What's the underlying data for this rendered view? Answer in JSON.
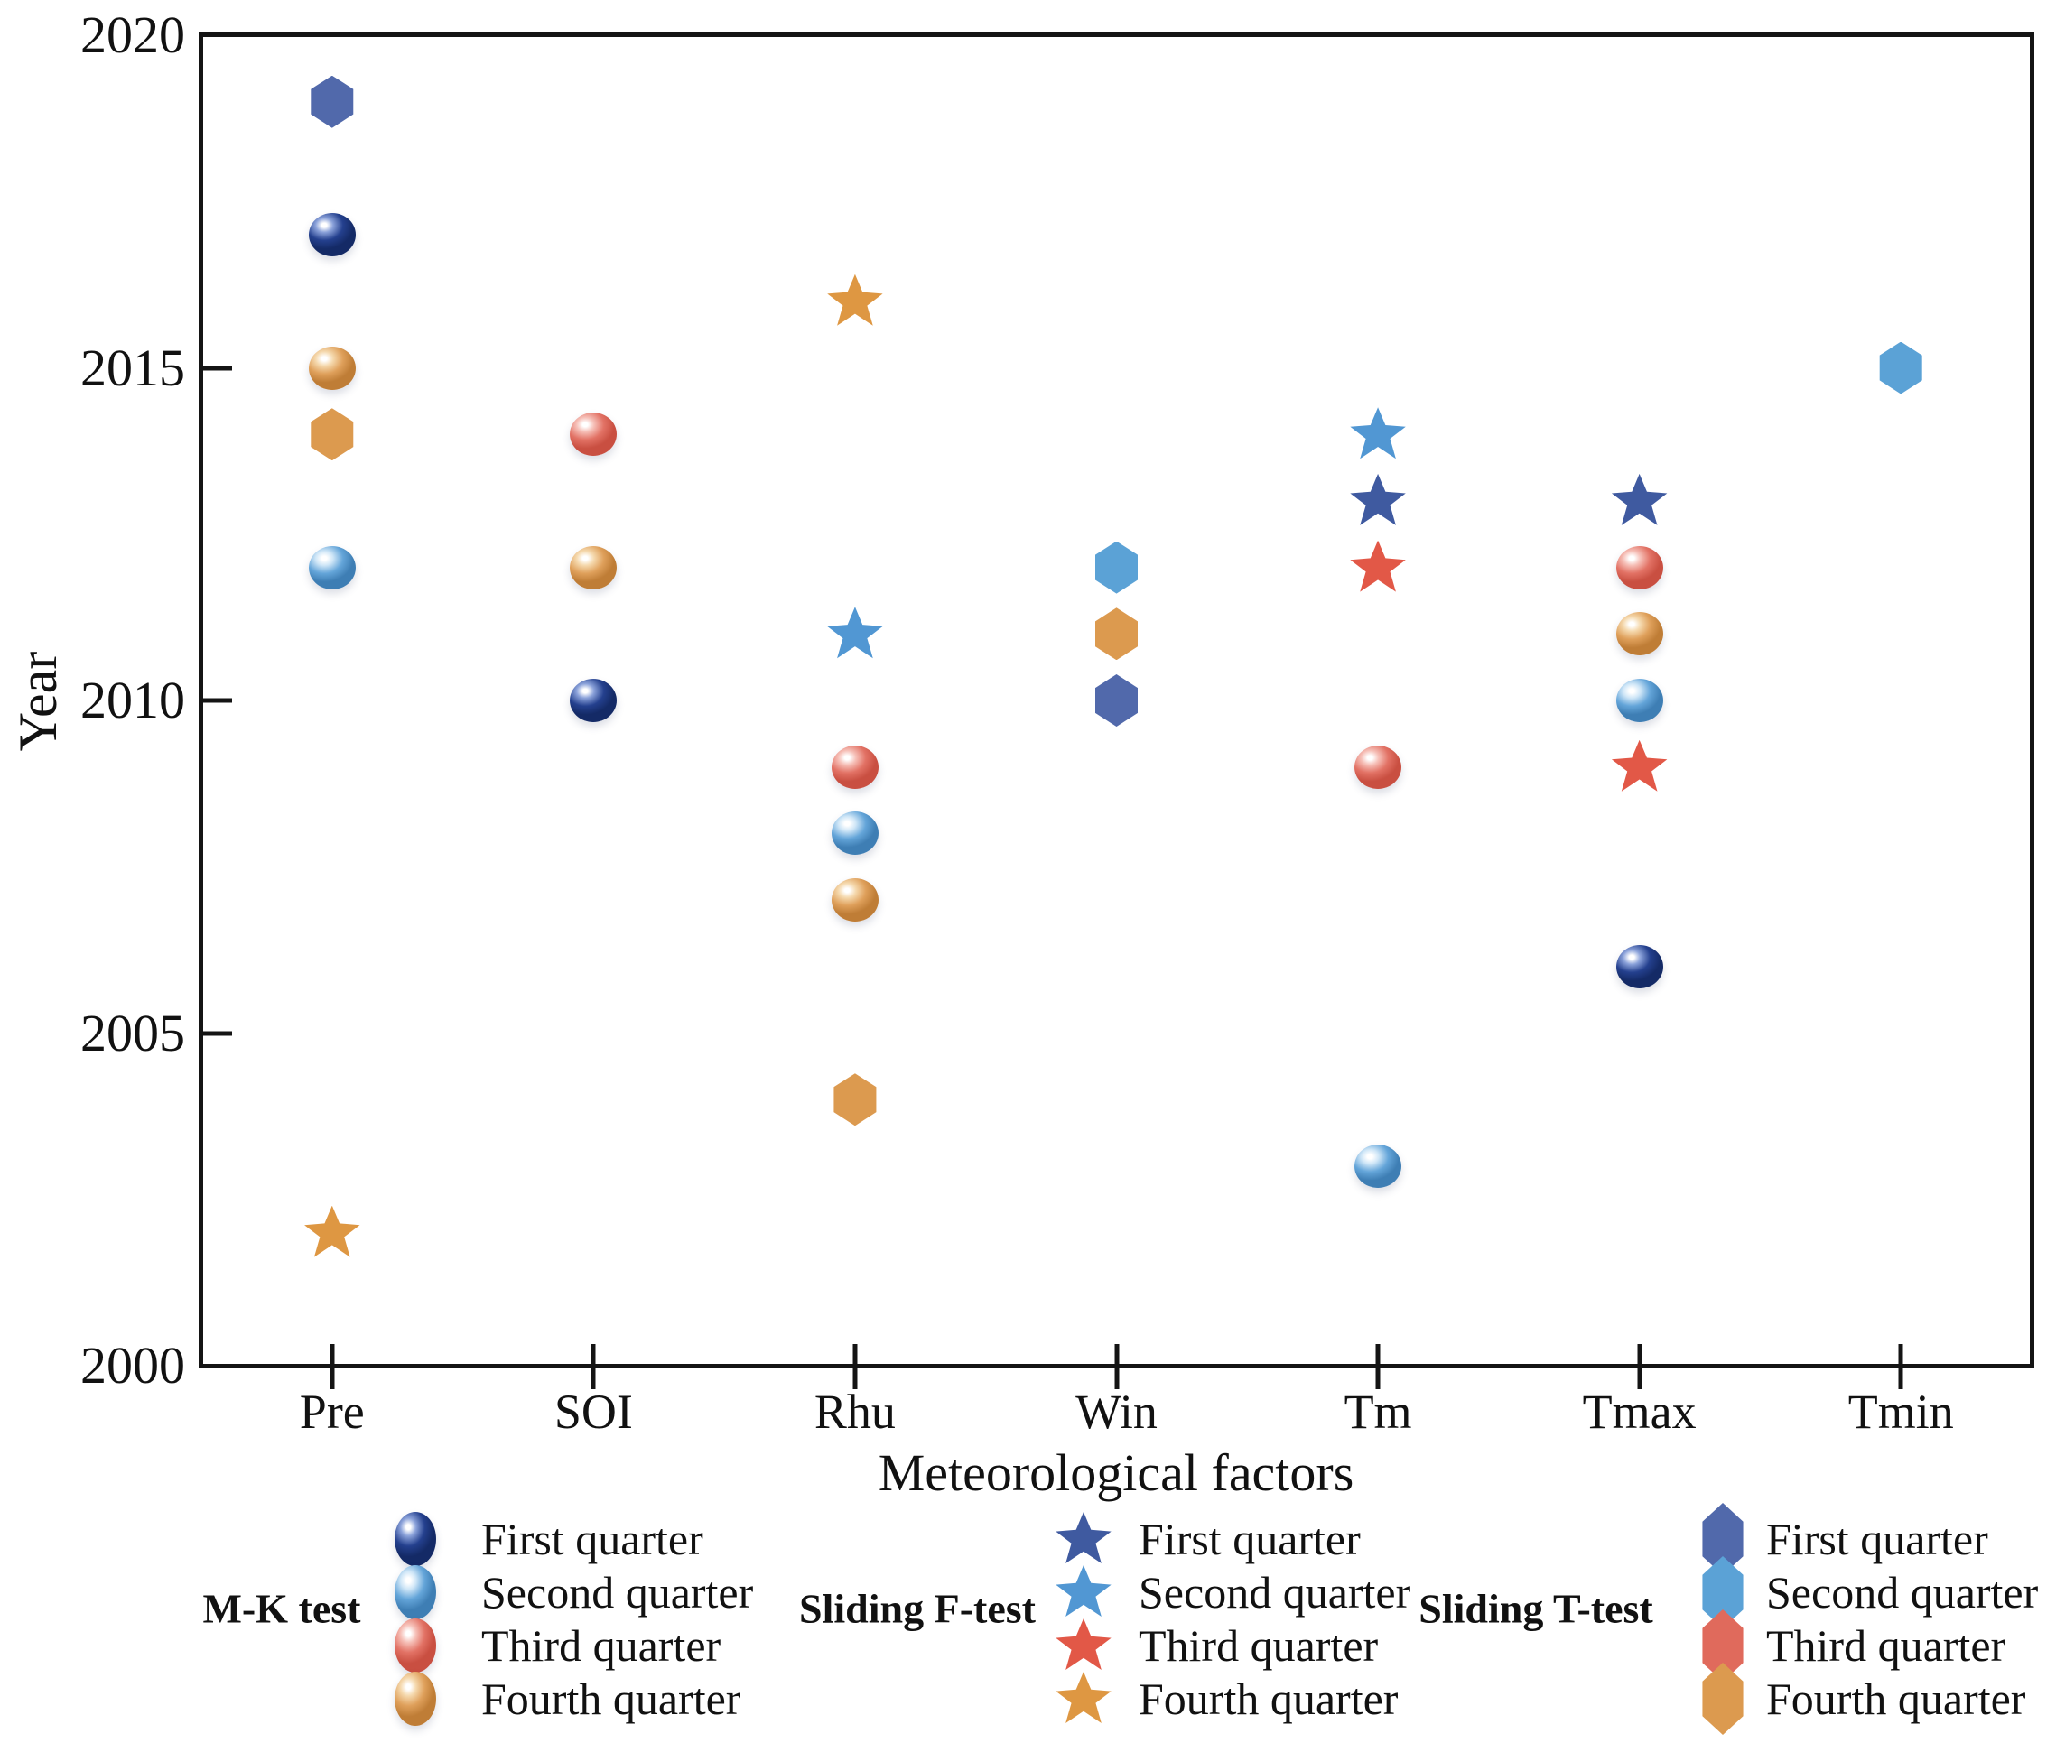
{
  "chart_data": {
    "type": "scatter",
    "title": "",
    "xlabel": "Meteorological factors",
    "ylabel": "Year",
    "x_categories": [
      "Pre",
      "SOI",
      "Rhu",
      "Win",
      "Tm",
      "Tmax",
      "Tmin"
    ],
    "y_ticks": [
      2000,
      2005,
      2010,
      2015,
      2020
    ],
    "ylim": [
      2000,
      2020
    ],
    "grid": "off",
    "legend_position": "bottom",
    "series": [
      {
        "name": "M-K test",
        "marker": "sphere",
        "quarters": [
          {
            "label": "First quarter",
            "color": "#24408e",
            "light": "#8ba2da",
            "dark": "#142a66",
            "points": [
              {
                "category": "Pre",
                "year": 2017
              },
              {
                "category": "SOI",
                "year": 2010
              },
              {
                "category": "Tmax",
                "year": 2006
              }
            ]
          },
          {
            "label": "Second quarter",
            "color": "#64a5d9",
            "light": "#cfe6f7",
            "dark": "#3e7eb4",
            "points": [
              {
                "category": "Pre",
                "year": 2012
              },
              {
                "category": "Rhu",
                "year": 2008
              },
              {
                "category": "Tm",
                "year": 2003
              },
              {
                "category": "Tmax",
                "year": 2010
              }
            ]
          },
          {
            "label": "Third quarter",
            "color": "#e27265",
            "light": "#f6c0b8",
            "dark": "#c94f41",
            "points": [
              {
                "category": "SOI",
                "year": 2014
              },
              {
                "category": "Rhu",
                "year": 2009
              },
              {
                "category": "Tm",
                "year": 2009
              },
              {
                "category": "Tmax",
                "year": 2012
              }
            ]
          },
          {
            "label": "Fourth quarter",
            "color": "#dfa05b",
            "light": "#f5d9ae",
            "dark": "#bf7d36",
            "points": [
              {
                "category": "Pre",
                "year": 2015
              },
              {
                "category": "SOI",
                "year": 2012
              },
              {
                "category": "Rhu",
                "year": 2007
              },
              {
                "category": "Tmax",
                "year": 2011
              }
            ]
          }
        ]
      },
      {
        "name": "Sliding F-test",
        "marker": "star",
        "quarters": [
          {
            "label": "First quarter",
            "color": "#3f5aa0",
            "points": [
              {
                "category": "Tm",
                "year": 2013
              },
              {
                "category": "Tmax",
                "year": 2013
              }
            ]
          },
          {
            "label": "Second quarter",
            "color": "#5197d3",
            "points": [
              {
                "category": "Rhu",
                "year": 2011
              },
              {
                "category": "Tm",
                "year": 2014
              }
            ]
          },
          {
            "label": "Third quarter",
            "color": "#e25847",
            "points": [
              {
                "category": "Tm",
                "year": 2012
              },
              {
                "category": "Tmax",
                "year": 2009
              }
            ]
          },
          {
            "label": "Fourth quarter",
            "color": "#de9742",
            "points": [
              {
                "category": "Pre",
                "year": 2002
              },
              {
                "category": "Rhu",
                "year": 2016
              }
            ]
          }
        ]
      },
      {
        "name": "Sliding T-test",
        "marker": "hexagon",
        "quarters": [
          {
            "label": "First quarter",
            "color": "#5169ab",
            "points": [
              {
                "category": "Pre",
                "year": 2019
              },
              {
                "category": "Win",
                "year": 2010
              }
            ]
          },
          {
            "label": "Second quarter",
            "color": "#5ba2d6",
            "points": [
              {
                "category": "Win",
                "year": 2012
              },
              {
                "category": "Tmin",
                "year": 2015
              }
            ]
          },
          {
            "label": "Third quarter",
            "color": "#e06a5c",
            "points": []
          },
          {
            "label": "Fourth quarter",
            "color": "#dc9a4f",
            "points": [
              {
                "category": "Pre",
                "year": 2014
              },
              {
                "category": "Rhu",
                "year": 2004
              },
              {
                "category": "Win",
                "year": 2011
              }
            ]
          }
        ]
      }
    ]
  }
}
